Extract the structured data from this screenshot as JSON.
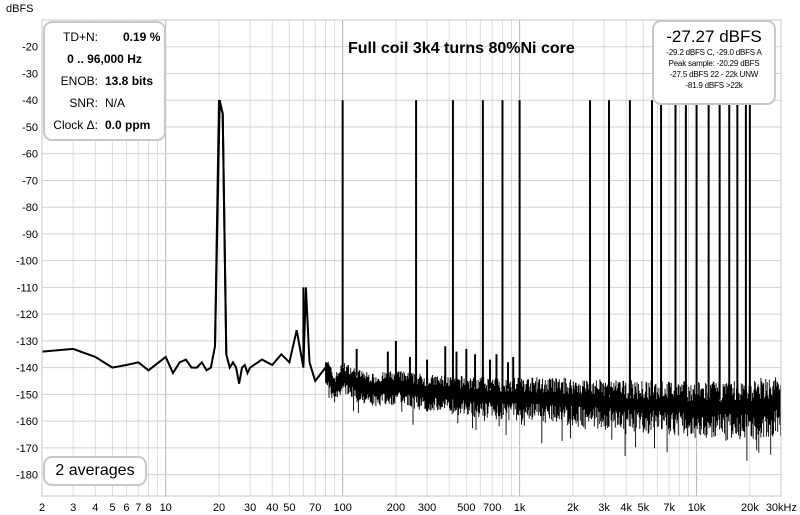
{
  "chart_data": {
    "type": "line",
    "title": "Full coil 3k4 turns 80%Ni core",
    "ylabel": "dBFS",
    "xunit": "kHz",
    "xscale": "log",
    "xlim": [
      2,
      30000
    ],
    "ylim": [
      -188,
      -10
    ],
    "grid": true,
    "yticks": [
      -20,
      -30,
      -40,
      -50,
      -60,
      -70,
      -80,
      -90,
      -100,
      -110,
      -120,
      -130,
      -140,
      -150,
      -160,
      -170,
      -180
    ],
    "xticks": [
      {
        "v": 2,
        "label": "2"
      },
      {
        "v": 3,
        "label": "3"
      },
      {
        "v": 4,
        "label": "4"
      },
      {
        "v": 5,
        "label": "5"
      },
      {
        "v": 6,
        "label": "6"
      },
      {
        "v": 7,
        "label": "7"
      },
      {
        "v": 8,
        "label": "8"
      },
      {
        "v": 10,
        "label": "10"
      },
      {
        "v": 20,
        "label": "20"
      },
      {
        "v": 30,
        "label": "30"
      },
      {
        "v": 40,
        "label": "40"
      },
      {
        "v": 50,
        "label": "50"
      },
      {
        "v": 70,
        "label": "70"
      },
      {
        "v": 100,
        "label": "100"
      },
      {
        "v": 200,
        "label": "200"
      },
      {
        "v": 300,
        "label": "300"
      },
      {
        "v": 500,
        "label": "500"
      },
      {
        "v": 700,
        "label": "700"
      },
      {
        "v": 1000,
        "label": "1k"
      },
      {
        "v": 2000,
        "label": "2k"
      },
      {
        "v": 3000,
        "label": "3k"
      },
      {
        "v": 4000,
        "label": "4k"
      },
      {
        "v": 5000,
        "label": "5k"
      },
      {
        "v": 7000,
        "label": "7k"
      },
      {
        "v": 10000,
        "label": "10k"
      },
      {
        "v": 20000,
        "label": "20k"
      },
      {
        "v": 30000,
        "label": "30kHz"
      }
    ],
    "series": [
      {
        "x": [
          2,
          3,
          4,
          5,
          6,
          7,
          8,
          10,
          11,
          12,
          13,
          14,
          15,
          16,
          17,
          18,
          19,
          20,
          21,
          22,
          23,
          24,
          25,
          26,
          27,
          28,
          29,
          30,
          35,
          40,
          45,
          50,
          55,
          60,
          62,
          65,
          70,
          80,
          90,
          100,
          120,
          150,
          200,
          300,
          500,
          700,
          1000,
          2000,
          3000,
          5000,
          7000,
          10000,
          15000,
          20000,
          30000
        ],
        "y": [
          -134,
          -133,
          -136,
          -140,
          -139,
          -138,
          -141,
          -136,
          -142,
          -138,
          -137,
          -140,
          -140,
          -138,
          -141,
          -140,
          -132,
          -40,
          -45,
          -135,
          -140,
          -138,
          -140,
          -146,
          -140,
          -139,
          -142,
          -140,
          -137,
          -139,
          -135,
          -138,
          -126,
          -140,
          -110,
          -138,
          -145,
          -140,
          -148,
          -143,
          -146,
          -148,
          -147,
          -149,
          -150,
          -151,
          -151,
          -152,
          -153,
          -154,
          -154,
          -155,
          -155,
          -155,
          -153
        ]
      }
    ],
    "harmonics": [
      {
        "f": 60,
        "y": -110
      },
      {
        "f": 100,
        "y": -40
      },
      {
        "f": 120,
        "y": -133
      },
      {
        "f": 180,
        "y": -134
      },
      {
        "f": 200,
        "y": -130
      },
      {
        "f": 240,
        "y": -136
      },
      {
        "f": 260,
        "y": -40
      },
      {
        "f": 300,
        "y": -137
      },
      {
        "f": 380,
        "y": -132
      },
      {
        "f": 420,
        "y": -40
      },
      {
        "f": 440,
        "y": -134
      },
      {
        "f": 500,
        "y": -133
      },
      {
        "f": 560,
        "y": -135
      },
      {
        "f": 620,
        "y": -40
      },
      {
        "f": 680,
        "y": -137
      },
      {
        "f": 740,
        "y": -135
      },
      {
        "f": 800,
        "y": -40
      },
      {
        "f": 860,
        "y": -138
      },
      {
        "f": 920,
        "y": -136
      },
      {
        "f": 1000,
        "y": -40
      },
      {
        "f": 2500,
        "y": -40
      },
      {
        "f": 3200,
        "y": -40
      },
      {
        "f": 4200,
        "y": -40
      },
      {
        "f": 5600,
        "y": -40
      },
      {
        "f": 6300,
        "y": -40
      },
      {
        "f": 7600,
        "y": -40
      },
      {
        "f": 8700,
        "y": -40
      },
      {
        "f": 10000,
        "y": -40
      },
      {
        "f": 11700,
        "y": -40
      },
      {
        "f": 13500,
        "y": -40
      },
      {
        "f": 15300,
        "y": -40
      },
      {
        "f": 17000,
        "y": -40
      },
      {
        "f": 19000,
        "y": -40
      },
      {
        "f": 20000,
        "y": -40
      }
    ]
  },
  "stats": {
    "tdn_label": "TD+N:",
    "tdn_value": "0.19 %",
    "bandwidth": "0 .. 96,000 Hz",
    "enob_label": "ENOB:",
    "enob_value": "13.8 bits",
    "snr_label": "SNR:",
    "snr_value": "N/A",
    "clock_label": "Clock Δ:",
    "clock_value": "0.0 ppm"
  },
  "level": {
    "main": "-27.27 dBFS",
    "line1": "-29.2 dBFS C, -29.0 dBFS A",
    "line2": "Peak sample: -20.29 dBFS",
    "line3": "-27.5 dBFS 22 - 22k UNW",
    "line4": "-81.9 dBFS >22k"
  },
  "averages": "2 averages",
  "colors": {
    "trace": "#000000",
    "grid": "#c8c8c8",
    "box_border": "#c8c8c8"
  }
}
